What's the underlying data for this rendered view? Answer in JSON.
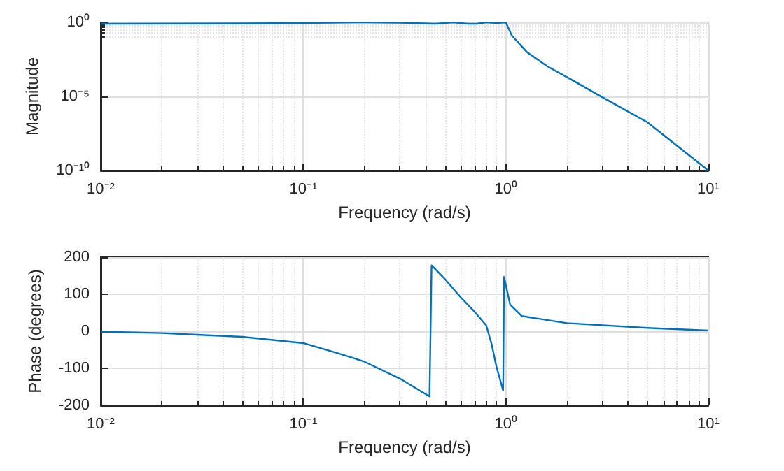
{
  "chart_data": [
    {
      "type": "line",
      "xlabel": "Frequency (rad/s)",
      "ylabel": "Magnitude",
      "log": "xy",
      "grid": true,
      "marker": "none",
      "line_style": "solid",
      "xlim": [
        0.01,
        10
      ],
      "ylim": [
        1e-10,
        1
      ],
      "xticks": [
        {
          "value": 0.01,
          "label": "10⁻²"
        },
        {
          "value": 0.1,
          "label": "10⁻¹"
        },
        {
          "value": 1,
          "label": "10⁰"
        },
        {
          "value": 10,
          "label": "10¹"
        }
      ],
      "yticks": [
        {
          "value": 1e-10,
          "label": "10⁻¹⁰"
        },
        {
          "value": 1e-05,
          "label": "10⁻⁵"
        },
        {
          "value": 1,
          "label": "10⁰"
        }
      ],
      "series": [
        {
          "color": "#0072bd",
          "x": [
            0.01,
            0.05,
            0.1,
            0.2,
            0.3,
            0.45,
            0.55,
            0.65,
            0.72,
            0.8,
            0.9,
            1,
            1.07,
            1.27,
            1.6,
            2.12,
            2.82,
            5,
            10
          ],
          "values": [
            0.8,
            0.85,
            0.9,
            1,
            0.95,
            0.8,
            1,
            0.8,
            0.8,
            1,
            0.9,
            1,
            0.13,
            0.01,
            0.0011,
            0.00013,
            1.4e-05,
            1.8e-07,
            1e-10
          ]
        }
      ]
    },
    {
      "type": "line",
      "xlabel": "Frequency (rad/s)",
      "ylabel": "Phase (degrees)",
      "log": "x",
      "grid": true,
      "marker": "none",
      "line_style": "solid",
      "xlim": [
        0.01,
        10
      ],
      "ylim": [
        -200,
        200
      ],
      "xticks": [
        {
          "value": 0.01,
          "label": "10⁻²"
        },
        {
          "value": 0.1,
          "label": "10⁻¹"
        },
        {
          "value": 1,
          "label": "10⁰"
        },
        {
          "value": 10,
          "label": "10¹"
        }
      ],
      "yticks": [
        -200,
        -100,
        0,
        100,
        200
      ],
      "series": [
        {
          "color": "#0072bd",
          "x": [
            0.01,
            0.02,
            0.05,
            0.1,
            0.15,
            0.2,
            0.3,
            0.42,
            0.43,
            0.5,
            0.6,
            0.7,
            0.8,
            0.85,
            0.9,
            0.97,
            0.98,
            1.05,
            1.2,
            2,
            5,
            10
          ],
          "values": [
            -1,
            -5,
            -15,
            -32,
            -60,
            -82,
            -128,
            -176,
            178,
            141,
            91,
            53,
            16,
            -34,
            -97,
            -160,
            147,
            72,
            41,
            22,
            9,
            2
          ]
        }
      ]
    }
  ]
}
